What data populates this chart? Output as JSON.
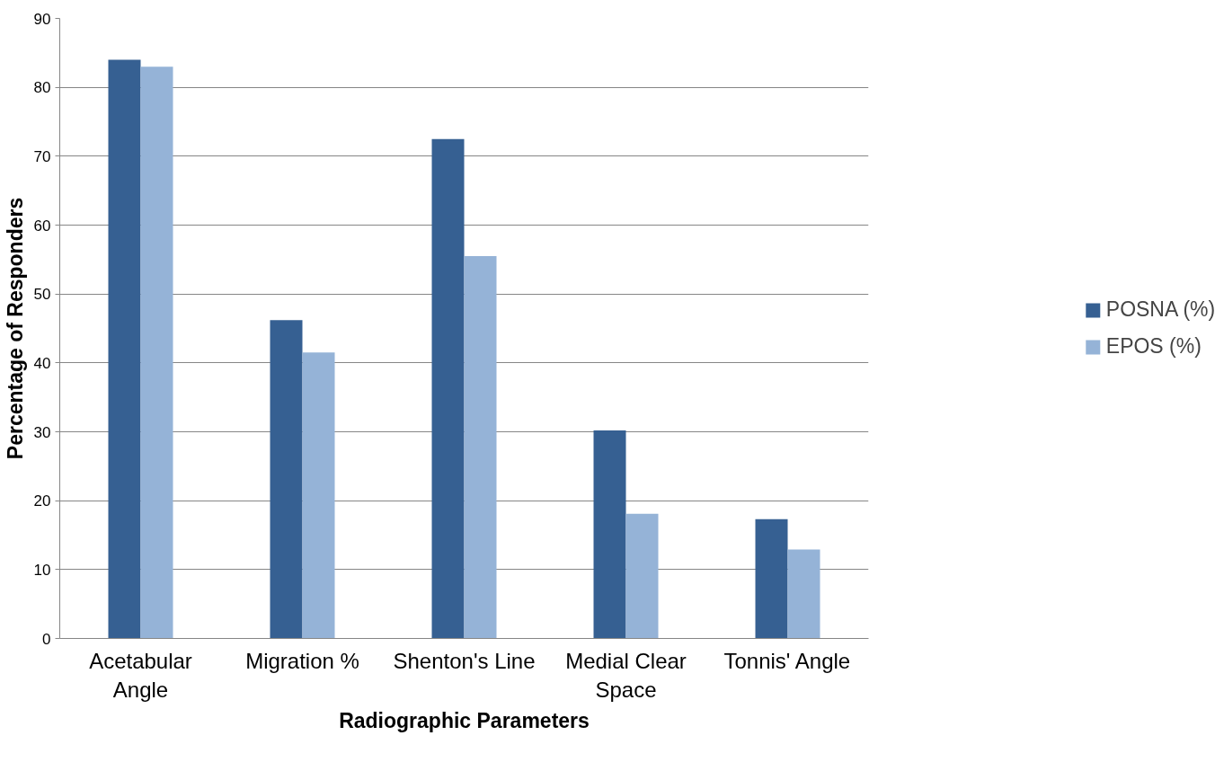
{
  "chart_data": {
    "type": "bar",
    "xlabel": "Radiographic Parameters",
    "ylabel": "Percentage of Responders",
    "categories": [
      "Acetabular Angle",
      "Migration %",
      "Shenton's Line",
      "Medial Clear Space",
      "Tonnis' Angle"
    ],
    "series": [
      {
        "name": "POSNA (%)",
        "color": "#366092",
        "values": [
          84,
          46.2,
          72.5,
          30.2,
          17.3
        ]
      },
      {
        "name": "EPOS (%)",
        "color": "#95b3d7",
        "values": [
          83,
          41.5,
          55.5,
          18.1,
          12.9
        ]
      }
    ],
    "ylim": [
      0,
      90
    ],
    "yticks": [
      0,
      10,
      20,
      30,
      40,
      50,
      60,
      70,
      80,
      90
    ],
    "grid": "y",
    "legend": "right"
  }
}
